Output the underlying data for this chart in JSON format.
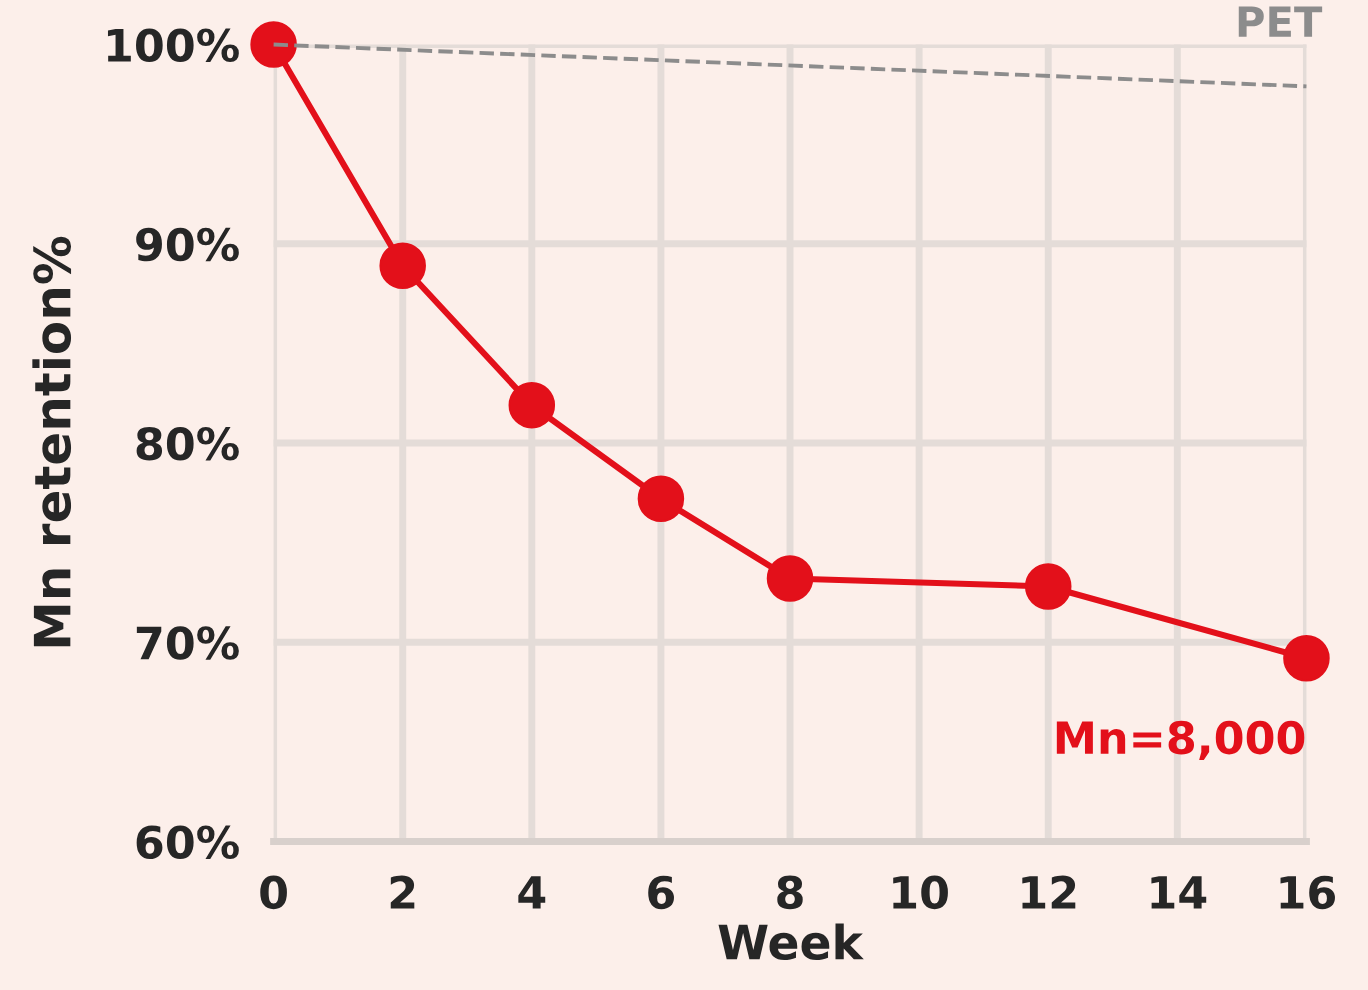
{
  "chart_data": {
    "type": "line",
    "xlabel": "Week",
    "ylabel": "Mn retention%",
    "x": [
      0,
      2,
      4,
      6,
      8,
      12,
      16
    ],
    "series": [
      {
        "name": "Mn=8,000",
        "color": "#e3101a",
        "values": [
          100,
          88.9,
          81.9,
          77.2,
          73.2,
          72.8,
          69.2
        ],
        "marker": "circle",
        "line_style": "solid"
      },
      {
        "name": "PET",
        "color": "#8c8c8c",
        "x": [
          0,
          16
        ],
        "values": [
          100,
          97.9
        ],
        "marker": "none",
        "line_style": "dashed"
      }
    ],
    "xlim": [
      0,
      16
    ],
    "xticks": [
      0,
      2,
      4,
      6,
      8,
      10,
      12,
      14,
      16
    ],
    "ylim": [
      60,
      100
    ],
    "yticks": [
      {
        "value": 60,
        "label": "60%"
      },
      {
        "value": 70,
        "label": "70%"
      },
      {
        "value": 80,
        "label": "80%"
      },
      {
        "value": 90,
        "label": "90%"
      },
      {
        "value": 100,
        "label": "100%"
      }
    ],
    "grid": true,
    "legend": false
  }
}
